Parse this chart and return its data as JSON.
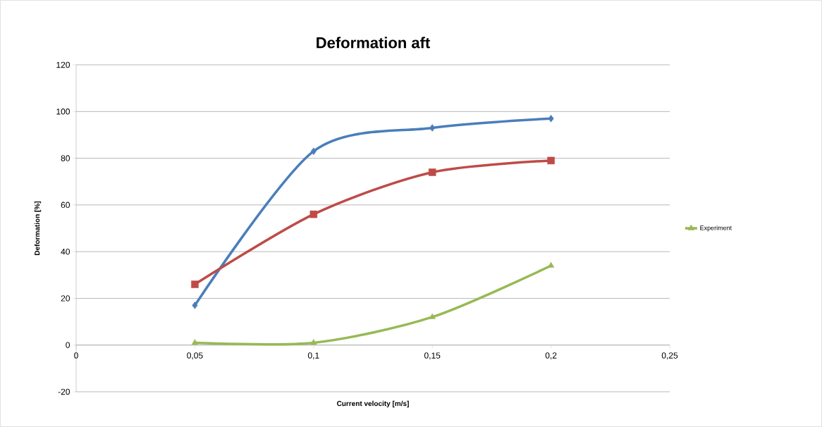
{
  "chart_data": {
    "type": "line",
    "title": "Deformation aft",
    "xlabel": "Current velocity [m/s]",
    "ylabel": "Deformation [%]",
    "x": [
      0.05,
      0.1,
      0.15,
      0.2
    ],
    "series": [
      {
        "color": "#4a7ebb",
        "marker": "diamond",
        "values": [
          17,
          83,
          93,
          97
        ]
      },
      {
        "color": "#be4b48",
        "marker": "square",
        "values": [
          26,
          56,
          74,
          79
        ]
      },
      {
        "name": "Experiment",
        "color": "#98b954",
        "marker": "triangle",
        "values": [
          1,
          1,
          12,
          34
        ]
      }
    ],
    "xlim": [
      0,
      0.25
    ],
    "xticks": [
      0,
      {
        "value": 0.05,
        "label": "0,05"
      },
      {
        "value": 0.1,
        "label": "0,1"
      },
      {
        "value": 0.15,
        "label": "0,15"
      },
      {
        "value": 0.2,
        "label": "0,2"
      },
      {
        "value": 0.25,
        "label": "0,25"
      }
    ],
    "ylim": [
      -20,
      120
    ],
    "yticks": [
      -20,
      0,
      20,
      40,
      60,
      80,
      100,
      120
    ],
    "grid": "y",
    "legend": "right"
  }
}
